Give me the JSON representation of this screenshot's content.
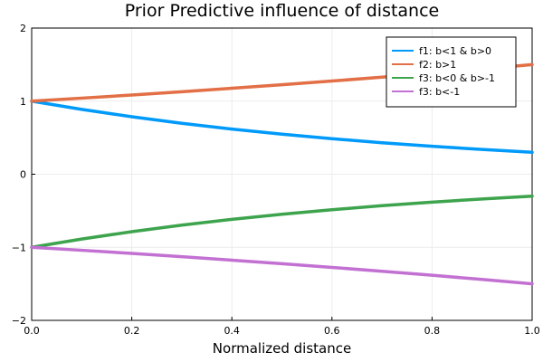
{
  "chart_data": {
    "type": "line",
    "title": "Prior Predictive influence of distance",
    "xlabel": "Normalized distance",
    "ylabel": "",
    "xlim": [
      0,
      1
    ],
    "ylim": [
      -2,
      2
    ],
    "x_ticks": [
      0.0,
      0.2,
      0.4,
      0.6,
      0.8,
      1.0
    ],
    "x_tick_labels": [
      "0.0",
      "0.2",
      "0.4",
      "0.6",
      "0.8",
      "1.0"
    ],
    "y_ticks": [
      -2,
      -1,
      0,
      1,
      2
    ],
    "y_tick_labels": [
      "−2",
      "−1",
      "0",
      "1",
      "2"
    ],
    "grid": true,
    "legend_position": "top-right",
    "x": [
      0.0,
      0.1,
      0.2,
      0.3,
      0.4,
      0.5,
      0.6,
      0.7,
      0.8,
      0.9,
      1.0
    ],
    "series": [
      {
        "name": "f1: b<1 & b>0",
        "color": "#009AFA",
        "values": [
          1.0,
          0.887,
          0.786,
          0.697,
          0.618,
          0.548,
          0.486,
          0.431,
          0.382,
          0.339,
          0.3
        ]
      },
      {
        "name": "f2: b>1",
        "color": "#E26F46",
        "values": [
          1.0,
          1.041,
          1.084,
          1.129,
          1.176,
          1.225,
          1.275,
          1.328,
          1.383,
          1.44,
          1.5
        ]
      },
      {
        "name": "f3: b<0 & b>-1",
        "color": "#3DA44D",
        "values": [
          -1.0,
          -0.887,
          -0.786,
          -0.697,
          -0.618,
          -0.548,
          -0.486,
          -0.431,
          -0.382,
          -0.339,
          -0.3
        ]
      },
      {
        "name": "f3: b<-1",
        "color": "#C271D2",
        "values": [
          -1.0,
          -1.041,
          -1.084,
          -1.129,
          -1.176,
          -1.225,
          -1.275,
          -1.328,
          -1.383,
          -1.44,
          -1.5
        ]
      }
    ]
  }
}
